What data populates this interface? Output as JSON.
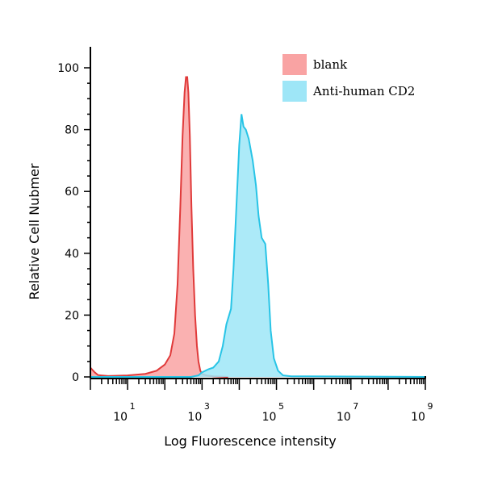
{
  "chart_data": {
    "type": "area",
    "title": "",
    "xlabel": "Log Fluorescence intensity",
    "ylabel": "Relative Cell Nubmer",
    "x_scale": "log",
    "xlim": [
      1,
      1000000000
    ],
    "ylim": [
      0,
      100
    ],
    "yticks": [
      0,
      20,
      40,
      60,
      80,
      100
    ],
    "yticks_text": [
      "0",
      "20",
      "40",
      "60",
      "80",
      "100"
    ],
    "xticks": [
      {
        "value": 10,
        "base": "10",
        "exp": "1"
      },
      {
        "value": 1000,
        "base": "10",
        "exp": "3"
      },
      {
        "value": 100000,
        "base": "10",
        "exp": "5"
      },
      {
        "value": 10000000,
        "base": "10",
        "exp": "7"
      },
      {
        "value": 1000000000,
        "base": "10",
        "exp": "9"
      }
    ],
    "grid": false,
    "legend_position": "top-right",
    "series": [
      {
        "name": "blank",
        "fill": "#f9a3a3",
        "stroke": "#e03a3a",
        "points": [
          [
            1,
            3
          ],
          [
            1.3,
            1.5
          ],
          [
            1.6,
            0.6
          ],
          [
            3,
            0.3
          ],
          [
            10,
            0.5
          ],
          [
            30,
            1
          ],
          [
            60,
            2
          ],
          [
            100,
            4
          ],
          [
            140,
            7
          ],
          [
            180,
            14
          ],
          [
            220,
            30
          ],
          [
            260,
            55
          ],
          [
            300,
            78
          ],
          [
            340,
            92
          ],
          [
            370,
            97
          ],
          [
            400,
            97
          ],
          [
            430,
            92
          ],
          [
            470,
            78
          ],
          [
            520,
            55
          ],
          [
            580,
            35
          ],
          [
            650,
            20
          ],
          [
            730,
            10
          ],
          [
            800,
            5
          ],
          [
            900,
            2
          ],
          [
            1000,
            1
          ],
          [
            1300,
            0.5
          ],
          [
            2000,
            0.2
          ],
          [
            5000,
            0
          ]
        ]
      },
      {
        "name": "Anti-human CD2",
        "fill": "#9ee6f7",
        "stroke": "#28c4e6",
        "points": [
          [
            1,
            0
          ],
          [
            500,
            0
          ],
          [
            800,
            0.5
          ],
          [
            1000,
            1.5
          ],
          [
            1500,
            2.5
          ],
          [
            2000,
            3
          ],
          [
            2800,
            5
          ],
          [
            3600,
            10
          ],
          [
            4500,
            17
          ],
          [
            6000,
            22
          ],
          [
            7000,
            35
          ],
          [
            8000,
            50
          ],
          [
            9000,
            63
          ],
          [
            10000,
            75
          ],
          [
            11500,
            85
          ],
          [
            13000,
            81
          ],
          [
            15000,
            80
          ],
          [
            18000,
            77
          ],
          [
            23000,
            70
          ],
          [
            28000,
            62
          ],
          [
            33000,
            52
          ],
          [
            40000,
            45
          ],
          [
            50000,
            43
          ],
          [
            60000,
            30
          ],
          [
            70000,
            15
          ],
          [
            85000,
            6
          ],
          [
            110000,
            2
          ],
          [
            150000,
            0.5
          ],
          [
            250000,
            0.2
          ],
          [
            1000000000,
            0
          ]
        ]
      }
    ]
  }
}
